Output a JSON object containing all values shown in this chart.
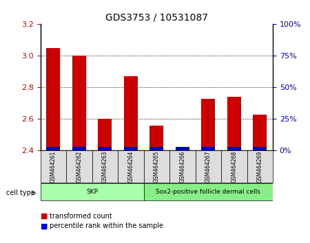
{
  "title": "GDS3753 / 10531087",
  "samples": [
    "GSM464261",
    "GSM464262",
    "GSM464263",
    "GSM464264",
    "GSM464265",
    "GSM464266",
    "GSM464267",
    "GSM464268",
    "GSM464269"
  ],
  "transformed_count": [
    3.05,
    3.0,
    2.6,
    2.87,
    2.56,
    2.42,
    2.73,
    2.74,
    2.63
  ],
  "percentile_rank": [
    2,
    2,
    2,
    2,
    2,
    2,
    2,
    2,
    2
  ],
  "ylim_left": [
    2.4,
    3.2
  ],
  "ylim_right": [
    0,
    100
  ],
  "yticks_left": [
    2.4,
    2.6,
    2.8,
    3.0,
    3.2
  ],
  "yticks_right": [
    0,
    25,
    50,
    75,
    100
  ],
  "ytick_labels_right": [
    "0%",
    "25%",
    "50%",
    "75%",
    "100%"
  ],
  "red_color": "#cc0000",
  "blue_color": "#0000cc",
  "bar_width": 0.35,
  "cell_type_groups": [
    {
      "label": "SKP",
      "start": 0,
      "end": 3,
      "color": "#aaffaa"
    },
    {
      "label": "Sox2-positive follicle dermal cells",
      "start": 4,
      "end": 8,
      "color": "#88ee88"
    }
  ],
  "cell_type_label": "cell type",
  "legend_items": [
    {
      "color": "#cc0000",
      "label": "transformed count"
    },
    {
      "color": "#0000cc",
      "label": "percentile rank within the sample"
    }
  ],
  "tick_label_color_left": "#cc0000",
  "tick_label_color_right": "#0000cc",
  "grid_color": "#000000",
  "background_color": "#ffffff",
  "plot_bg_color": "#ffffff"
}
